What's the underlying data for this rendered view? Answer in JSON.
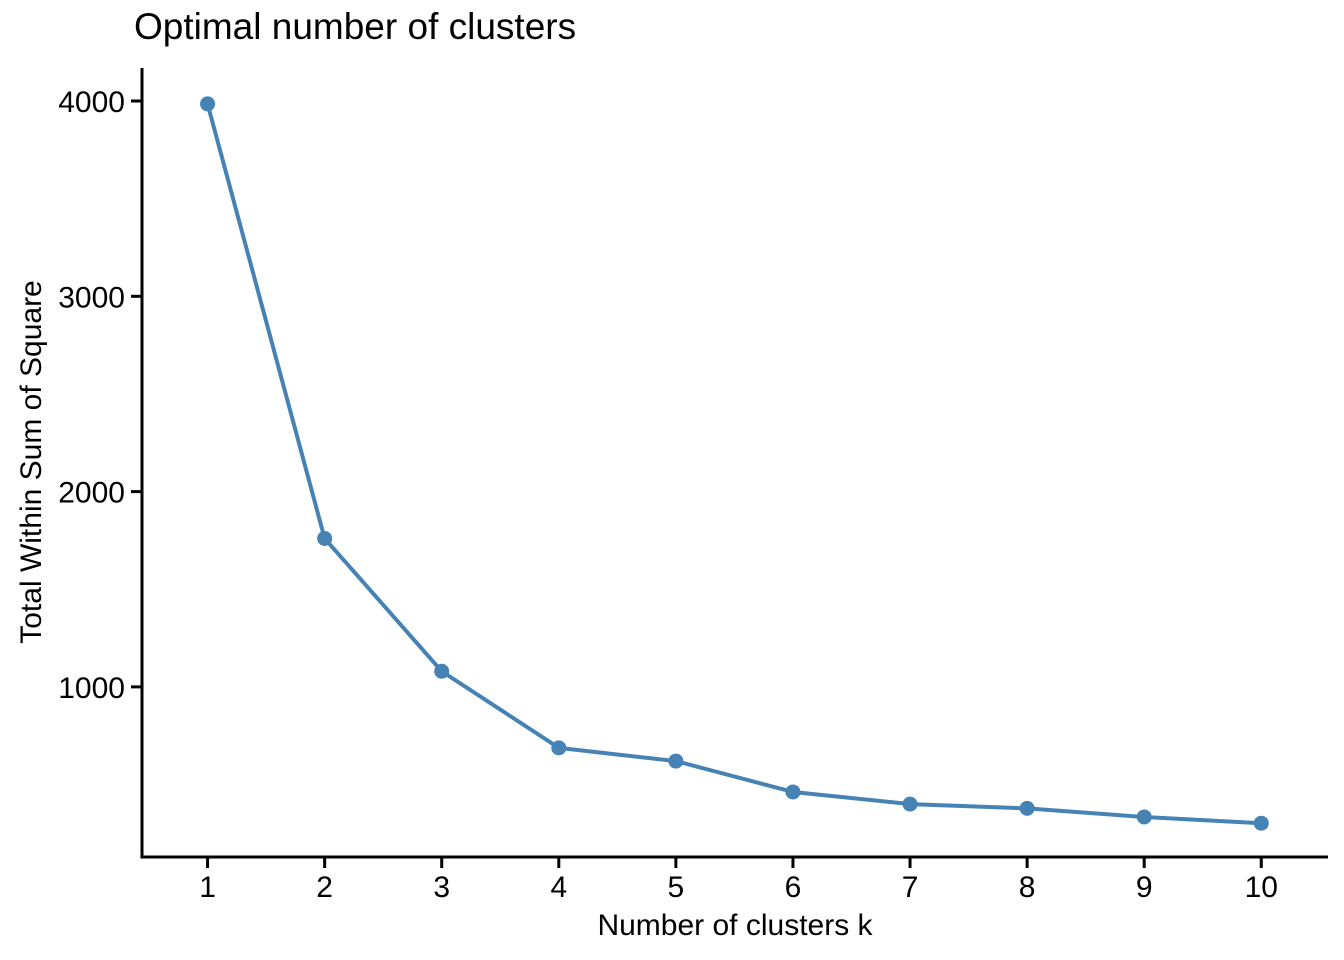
{
  "chart_data": {
    "type": "line",
    "title": "Optimal number of clusters",
    "xlabel": "Number of clusters k",
    "ylabel": "Total Within Sum of Square",
    "x": [
      1,
      2,
      3,
      4,
      5,
      6,
      7,
      8,
      9,
      10
    ],
    "values": [
      3985,
      1760,
      1080,
      688,
      620,
      462,
      400,
      378,
      334,
      302
    ],
    "series_name": "Total within sum of square",
    "xticks": [
      1,
      2,
      3,
      4,
      5,
      6,
      7,
      8,
      9,
      10
    ],
    "yticks": [
      1000,
      2000,
      3000,
      4000
    ],
    "xlim": [
      0.44,
      10.57
    ],
    "ylim": [
      129,
      4169
    ],
    "grid": false,
    "legend_position": "none",
    "marker": "circle",
    "line_color": "#4682B4",
    "point_color": "#4682B4",
    "axis_color": "#000000",
    "text_color": "#000000",
    "background": "#FFFFFF"
  }
}
